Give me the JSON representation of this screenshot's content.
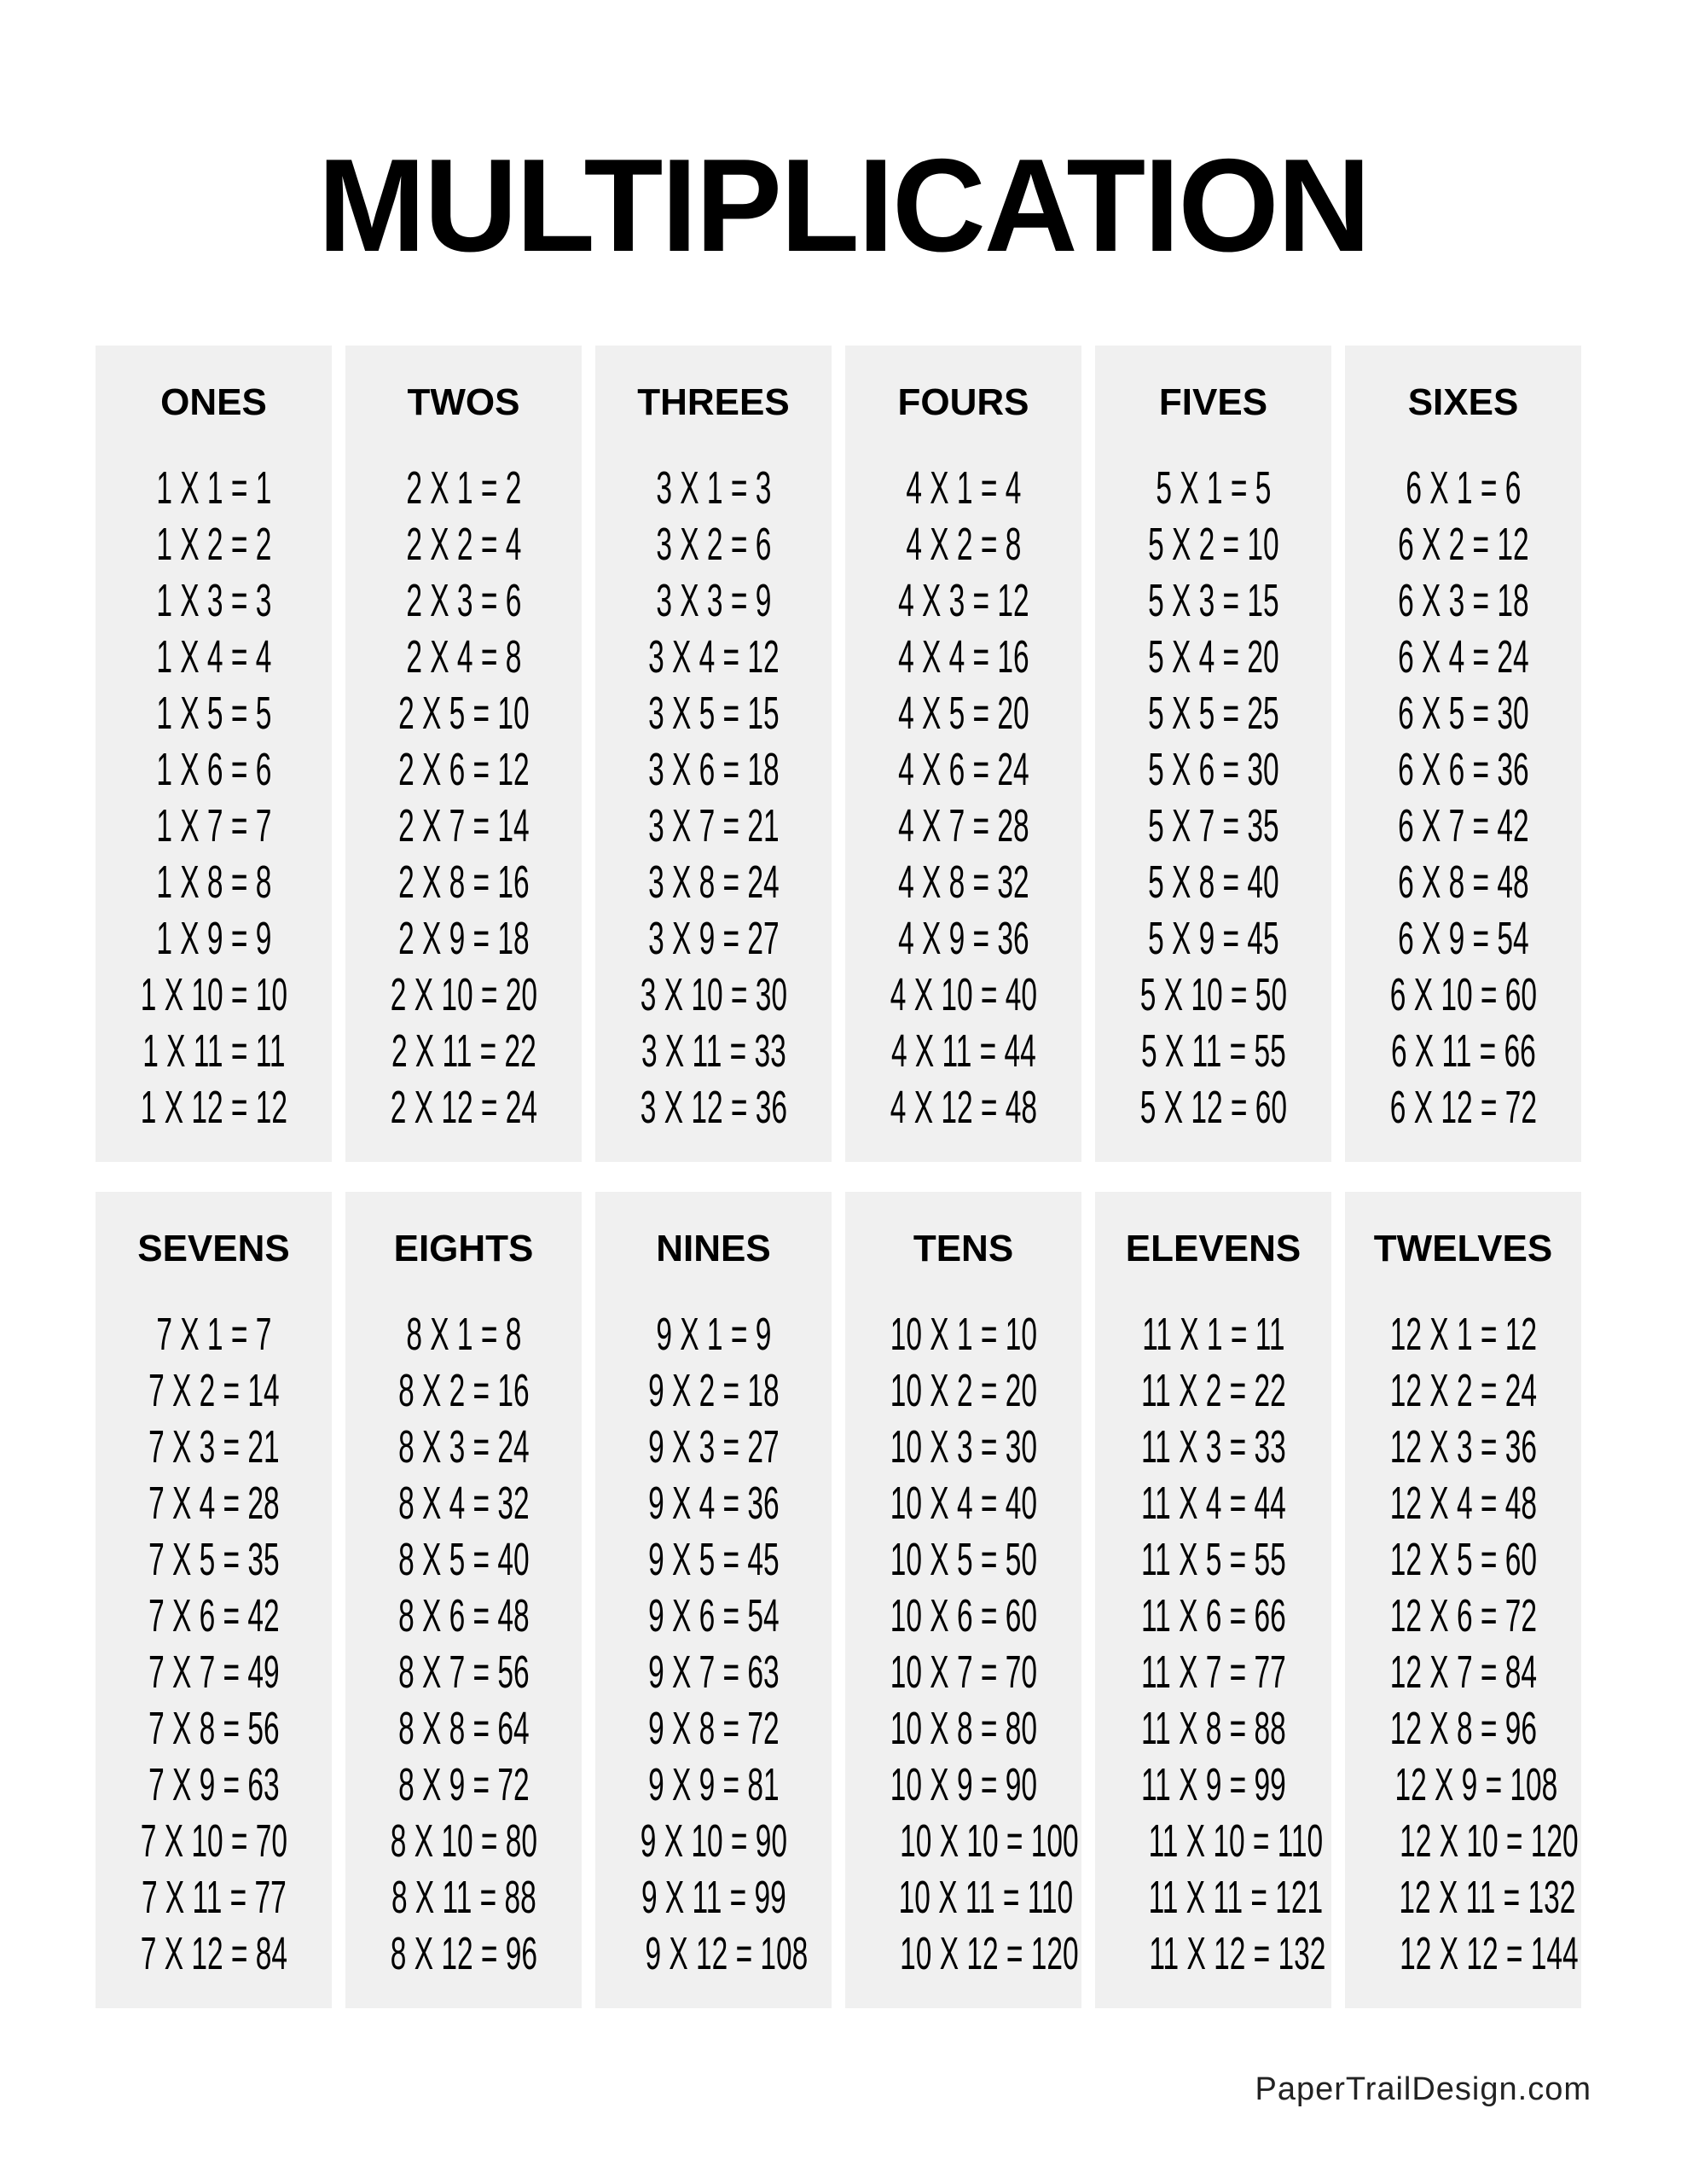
{
  "title": "MULTIPLICATION",
  "footer": "PaperTrailDesign.com",
  "tables": [
    {
      "name": "ONES",
      "rows": [
        "1 X 1 = 1",
        "1 X 2 = 2",
        "1 X 3 = 3",
        "1 X 4 = 4",
        "1 X 5 = 5",
        "1 X 6 = 6",
        "1 X 7 = 7",
        "1 X 8 = 8",
        "1 X 9 = 9",
        "1 X 10 = 10",
        "1 X 11 = 11",
        "1 X 12 = 12"
      ]
    },
    {
      "name": "TWOS",
      "rows": [
        "2 X 1 = 2",
        "2 X 2 = 4",
        "2 X 3 = 6",
        "2 X 4 = 8",
        "2 X 5 = 10",
        "2 X 6 = 12",
        "2 X 7 = 14",
        "2 X 8 = 16",
        "2 X 9 = 18",
        "2 X 10 = 20",
        "2 X 11 = 22",
        "2 X 12 = 24"
      ]
    },
    {
      "name": "THREES",
      "rows": [
        "3 X 1 = 3",
        "3 X 2 = 6",
        "3 X 3 = 9",
        "3 X 4 = 12",
        "3 X 5 = 15",
        "3 X 6 = 18",
        "3 X 7 = 21",
        "3 X 8 = 24",
        "3 X 9 = 27",
        "3 X 10 = 30",
        "3 X 11 = 33",
        "3 X 12 = 36"
      ]
    },
    {
      "name": "FOURS",
      "rows": [
        "4 X 1 = 4",
        "4 X 2 = 8",
        "4 X 3 = 12",
        "4 X 4 = 16",
        "4 X 5 = 20",
        "4 X 6 = 24",
        "4 X 7 = 28",
        "4 X 8 = 32",
        "4 X 9 = 36",
        "4 X 10 = 40",
        "4 X 11 = 44",
        "4 X 12 = 48"
      ]
    },
    {
      "name": "FIVES",
      "rows": [
        "5 X 1 = 5",
        "5 X 2 = 10",
        "5 X 3 = 15",
        "5 X 4 = 20",
        "5 X 5 = 25",
        "5 X 6 = 30",
        "5 X 7 = 35",
        "5 X 8 = 40",
        "5 X 9 = 45",
        "5 X 10 = 50",
        "5 X 11 = 55",
        "5 X 12 = 60"
      ]
    },
    {
      "name": "SIXES",
      "rows": [
        "6 X 1 = 6",
        "6 X 2 = 12",
        "6 X 3 = 18",
        "6 X 4 = 24",
        "6 X 5 = 30",
        "6 X 6 = 36",
        "6 X 7 = 42",
        "6 X 8 = 48",
        "6 X 9 = 54",
        "6 X 10 = 60",
        "6 X 11 = 66",
        "6 X 12 = 72"
      ]
    },
    {
      "name": "SEVENS",
      "rows": [
        "7 X 1 = 7",
        "7 X 2 = 14",
        "7 X 3 = 21",
        "7 X 4 = 28",
        "7 X 5 = 35",
        "7 X 6 = 42",
        "7 X 7 = 49",
        "7 X 8 = 56",
        "7 X 9 = 63",
        "7 X 10 = 70",
        "7 X 11 = 77",
        "7 X 12 = 84"
      ]
    },
    {
      "name": "EIGHTS",
      "rows": [
        "8 X 1 = 8",
        "8 X 2 = 16",
        "8 X 3 = 24",
        "8 X 4 = 32",
        "8 X 5 = 40",
        "8 X 6 = 48",
        "8 X 7 = 56",
        "8 X 8 = 64",
        "8 X 9 = 72",
        "8 X 10 = 80",
        "8 X 11 = 88",
        "8 X 12 = 96"
      ]
    },
    {
      "name": "NINES",
      "rows": [
        "9 X 1 = 9",
        "9 X 2 = 18",
        "9 X 3 = 27",
        "9 X 4 = 36",
        "9 X 5 = 45",
        "9 X 6 = 54",
        "9 X 7 = 63",
        "9 X 8 = 72",
        "9 X 9 = 81",
        "9 X 10 = 90",
        "9 X 11 = 99",
        "9 X 12 = 108"
      ]
    },
    {
      "name": "TENS",
      "rows": [
        "10 X 1 = 10",
        "10 X 2 = 20",
        "10 X 3 = 30",
        "10 X 4 = 40",
        "10 X 5 = 50",
        "10 X 6 = 60",
        "10 X 7 = 70",
        "10 X 8 = 80",
        "10 X 9 = 90",
        "10 X 10 = 100",
        "10 X 11 = 110",
        "10 X 12 = 120"
      ]
    },
    {
      "name": "ELEVENS",
      "rows": [
        "11 X 1 = 11",
        "11 X 2 = 22",
        "11 X 3 = 33",
        "11 X 4 = 44",
        "11 X 5 = 55",
        "11 X 6 = 66",
        "11 X 7 = 77",
        "11 X 8 = 88",
        "11 X 9 = 99",
        "11 X 10 = 110",
        "11 X 11 = 121",
        "11 X 12 = 132"
      ]
    },
    {
      "name": "TWELVES",
      "rows": [
        "12 X 1 = 12",
        "12 X 2 = 24",
        "12 X 3 = 36",
        "12 X 4 = 48",
        "12 X 5 = 60",
        "12 X 6 = 72",
        "12 X 7 = 84",
        "12 X 8 = 96",
        "12 X 9 = 108",
        "12 X 10 = 120",
        "12 X 11 = 132",
        "12 X 12 = 144"
      ]
    }
  ]
}
